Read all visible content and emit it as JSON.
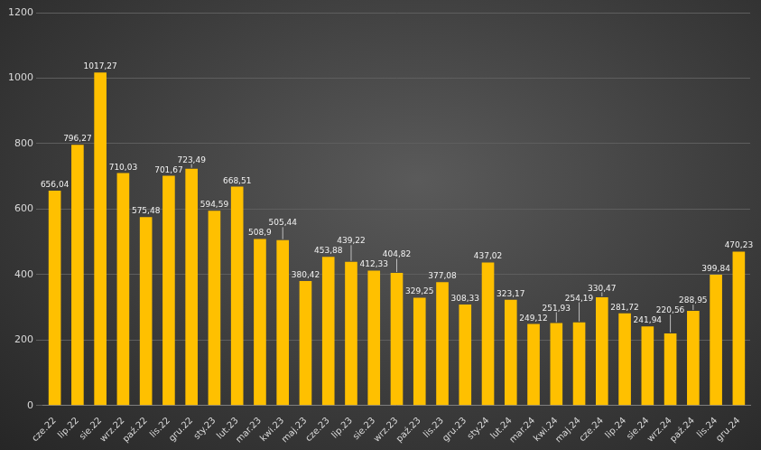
{
  "chart_data": {
    "type": "bar",
    "categories": [
      "cze.22",
      "lip.22",
      "sie.22",
      "wrz.22",
      "paź.22",
      "lis.22",
      "gru.22",
      "sty.23",
      "lut.23",
      "mar.23",
      "kwi.23",
      "maj.23",
      "cze.23",
      "lip.23",
      "sie.23",
      "wrz.23",
      "paź.23",
      "lis.23",
      "gru.23",
      "sty.24",
      "lut.24",
      "mar.24",
      "kwi.24",
      "maj.24",
      "cze.24",
      "lip.24",
      "sie.24",
      "wrz.24",
      "paź.24",
      "lis.24",
      "gru.24"
    ],
    "values": [
      656.04,
      796.27,
      1017.27,
      710.03,
      575.48,
      701.67,
      723.49,
      594.59,
      668.51,
      508.9,
      505.44,
      380.42,
      453.88,
      439.22,
      412.33,
      404.82,
      329.25,
      377.08,
      308.33,
      437.02,
      323.17,
      249.12,
      251.93,
      254.19,
      330.47,
      281.72,
      241.94,
      220.56,
      288.95,
      399.84,
      470.23
    ],
    "value_labels": [
      "656,04",
      "796,27",
      "1017,27",
      "710,03",
      "575,48",
      "701,67",
      "723,49",
      "594,59",
      "668,51",
      "508,9",
      "505,44",
      "380,42",
      "453,88",
      "439,22",
      "412,33",
      "404,82",
      "329,25",
      "377,08",
      "308,33",
      "437,02",
      "323,17",
      "249,12",
      "251,93",
      "254,19",
      "330,47",
      "281,72",
      "241,94",
      "220,56",
      "288,95",
      "399,84",
      "470,23"
    ],
    "color": "#ffc000",
    "ylim": [
      0,
      1200
    ],
    "yticks": [
      0,
      200,
      400,
      600,
      800,
      1000,
      1200
    ],
    "grid": true,
    "data_labels": true
  }
}
